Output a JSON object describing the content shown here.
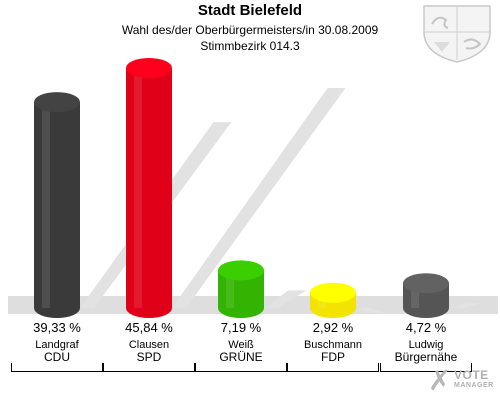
{
  "header": {
    "title": "Stadt Bielefeld",
    "subtitle": "Wahl des/der Oberbürgermeisters/in 30.08.2009",
    "district": "Stimmbezirk 014.3"
  },
  "watermark": {
    "mark": "✗",
    "text1": "VOTE",
    "text2": "MANAGER"
  },
  "colors": {
    "CDU": "#3a3a3a",
    "SPD": "#e00018",
    "GRUENE": "#33b400",
    "FDP": "#f2e400",
    "BUERGERNAEHE": "#555555"
  },
  "chart_data": {
    "type": "bar",
    "categories": [
      "CDU",
      "SPD",
      "GRÜNE",
      "FDP",
      "Bürgernähe"
    ],
    "candidates": [
      "Landgraf",
      "Clausen",
      "Weiß",
      "Buschmann",
      "Ludwig"
    ],
    "values": [
      39.33,
      45.84,
      7.19,
      2.92,
      4.72
    ],
    "value_labels": [
      "39,33 %",
      "45,84 %",
      "7,19 %",
      "2,92 %",
      "4,72 %"
    ],
    "colors": [
      "#3a3a3a",
      "#e00018",
      "#33b400",
      "#f2e400",
      "#555555"
    ],
    "ylim": [
      0,
      45.84
    ],
    "grid": false,
    "legend": "none"
  }
}
